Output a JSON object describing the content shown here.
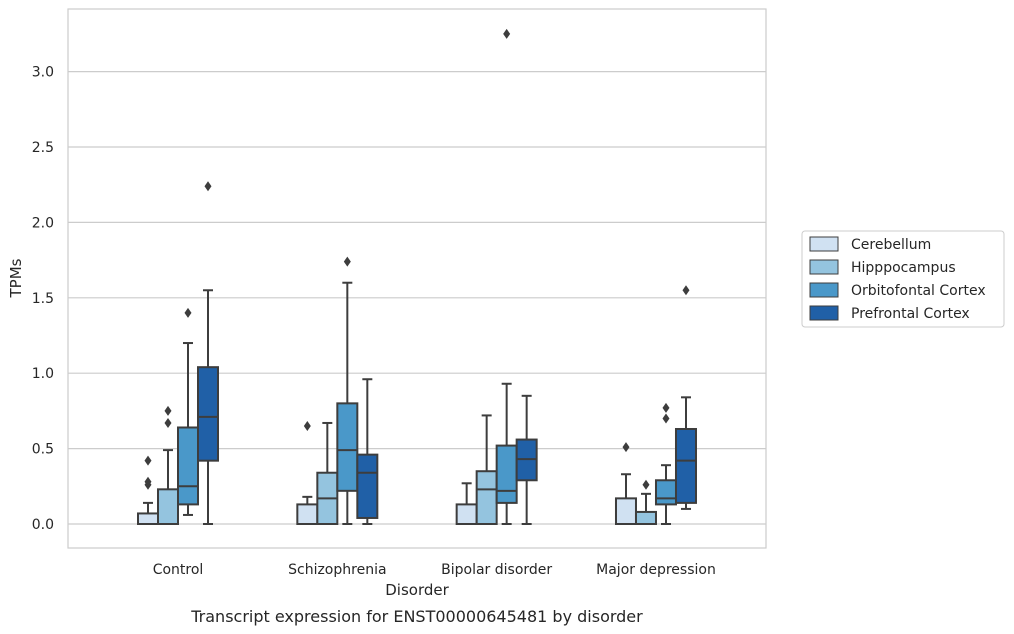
{
  "chart_data": {
    "type": "box",
    "caption": "Transcript expression for ENST00000645481 by disorder",
    "xlabel": "Disorder",
    "ylabel": "TPMs",
    "ylim": [
      -0.16,
      3.42
    ],
    "yticks": [
      0.0,
      0.5,
      1.0,
      1.5,
      2.0,
      2.5,
      3.0
    ],
    "ytick_labels": [
      "0.0",
      "0.5",
      "1.0",
      "1.5",
      "2.0",
      "2.5",
      "3.0"
    ],
    "grid": "horizontal",
    "legend_position": "right",
    "categories": [
      "Control",
      "Schizophrenia",
      "Bipolar disorder",
      "Major depression"
    ],
    "series": [
      {
        "name": "Cerebellum",
        "color": "#d0e1f2",
        "boxes": [
          {
            "whislo": 0.0,
            "q1": 0.0,
            "med": 0.0,
            "q3": 0.07,
            "whishi": 0.14,
            "fliers": [
              0.26,
              0.28,
              0.42
            ]
          },
          {
            "whislo": 0.0,
            "q1": 0.0,
            "med": 0.0,
            "q3": 0.13,
            "whishi": 0.18,
            "fliers": [
              0.65
            ]
          },
          {
            "whislo": 0.0,
            "q1": 0.0,
            "med": 0.0,
            "q3": 0.13,
            "whishi": 0.27,
            "fliers": []
          },
          {
            "whislo": 0.0,
            "q1": 0.0,
            "med": 0.0,
            "q3": 0.17,
            "whishi": 0.33,
            "fliers": [
              0.51
            ]
          }
        ]
      },
      {
        "name": "Hipppocampus",
        "color": "#94c4df",
        "boxes": [
          {
            "whislo": 0.0,
            "q1": 0.0,
            "med": 0.0,
            "q3": 0.23,
            "whishi": 0.49,
            "fliers": [
              0.67,
              0.75
            ]
          },
          {
            "whislo": 0.0,
            "q1": 0.0,
            "med": 0.17,
            "q3": 0.34,
            "whishi": 0.67,
            "fliers": []
          },
          {
            "whislo": 0.0,
            "q1": 0.0,
            "med": 0.23,
            "q3": 0.35,
            "whishi": 0.72,
            "fliers": []
          },
          {
            "whislo": 0.0,
            "q1": 0.0,
            "med": 0.0,
            "q3": 0.08,
            "whishi": 0.2,
            "fliers": [
              0.26
            ]
          }
        ]
      },
      {
        "name": "Orbitofontal Cortex",
        "color": "#4a98c9",
        "boxes": [
          {
            "whislo": 0.06,
            "q1": 0.13,
            "med": 0.25,
            "q3": 0.64,
            "whishi": 1.2,
            "fliers": [
              1.4
            ]
          },
          {
            "whislo": 0.0,
            "q1": 0.22,
            "med": 0.49,
            "q3": 0.8,
            "whishi": 1.6,
            "fliers": [
              1.74
            ]
          },
          {
            "whislo": 0.0,
            "q1": 0.14,
            "med": 0.22,
            "q3": 0.52,
            "whishi": 0.93,
            "fliers": [
              3.25
            ]
          },
          {
            "whislo": 0.0,
            "q1": 0.13,
            "med": 0.17,
            "q3": 0.29,
            "whishi": 0.39,
            "fliers": [
              0.7,
              0.77
            ]
          }
        ]
      },
      {
        "name": "Prefrontal Cortex",
        "color": "#2060a7",
        "boxes": [
          {
            "whislo": 0.0,
            "q1": 0.42,
            "med": 0.71,
            "q3": 1.04,
            "whishi": 1.55,
            "fliers": [
              2.24
            ]
          },
          {
            "whislo": 0.0,
            "q1": 0.04,
            "med": 0.34,
            "q3": 0.46,
            "whishi": 0.96,
            "fliers": []
          },
          {
            "whislo": 0.0,
            "q1": 0.29,
            "med": 0.43,
            "q3": 0.56,
            "whishi": 0.85,
            "fliers": []
          },
          {
            "whislo": 0.1,
            "q1": 0.14,
            "med": 0.42,
            "q3": 0.63,
            "whishi": 0.84,
            "fliers": [
              1.55
            ]
          }
        ]
      }
    ]
  }
}
